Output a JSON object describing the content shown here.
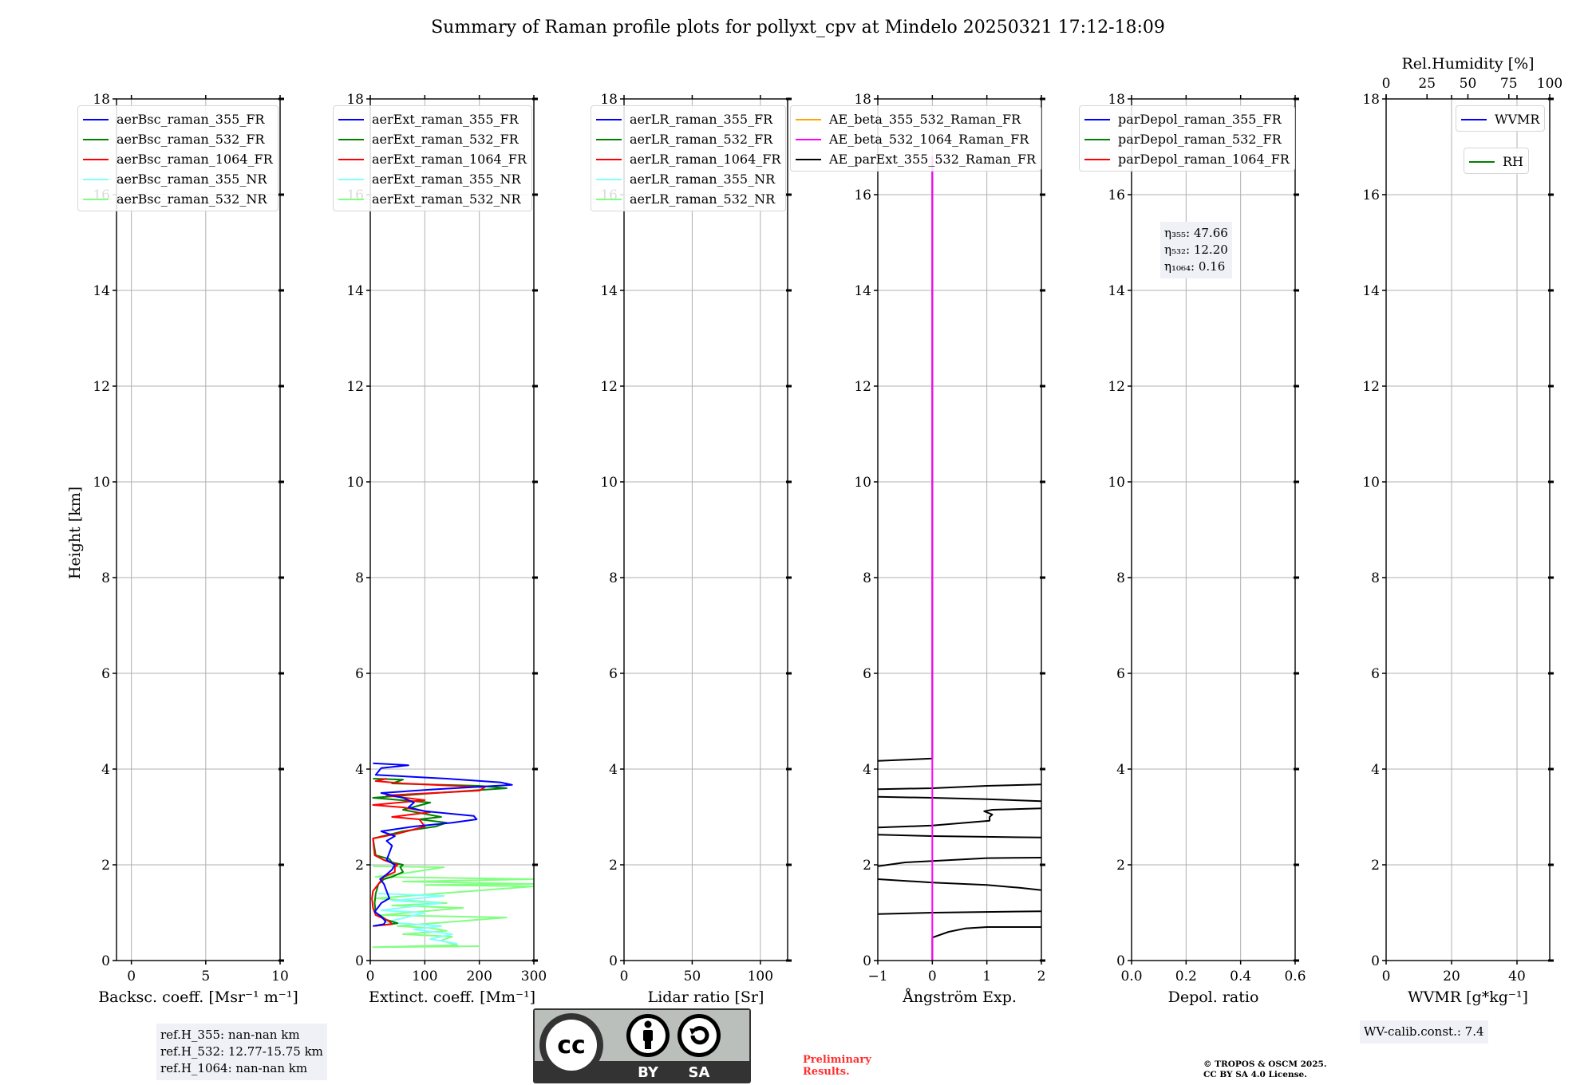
{
  "title": "Summary of Raman profile plots for pollyxt_cpv at Mindelo 20250321 17:12-18:09",
  "yaxis": {
    "label": "Height [km]",
    "ylim": [
      0,
      18
    ],
    "ticks": [
      0,
      2,
      4,
      6,
      8,
      10,
      12,
      14,
      16,
      18
    ],
    "ticklabels": [
      "0",
      "2",
      "4",
      "6",
      "8",
      "10",
      "12",
      "14",
      "16",
      "18"
    ]
  },
  "chart_data": [
    {
      "type": "line",
      "name": "backscatter",
      "xlabel": "Backsc. coeff. [Msr⁻¹ m⁻¹]",
      "xlim": [
        -1,
        10
      ],
      "xticks": [
        0,
        5,
        10
      ],
      "xticklabels": [
        "0",
        "5",
        "10"
      ],
      "legend": [
        {
          "label": "aerBsc_raman_355_FR",
          "color": "#0000ff"
        },
        {
          "label": "aerBsc_raman_532_FR",
          "color": "#008000"
        },
        {
          "label": "aerBsc_raman_1064_FR",
          "color": "#ff0000"
        },
        {
          "label": "aerBsc_raman_355_NR",
          "color": "#80ffff"
        },
        {
          "label": "aerBsc_raman_532_NR",
          "color": "#80ff80"
        }
      ],
      "series": []
    },
    {
      "type": "line",
      "name": "extinction",
      "xlabel": "Extinct. coeff. [Mm⁻¹]",
      "xlim": [
        0,
        300
      ],
      "xticks": [
        0,
        100,
        200,
        300
      ],
      "xticklabels": [
        "0",
        "100",
        "200",
        "300"
      ],
      "legend": [
        {
          "label": "aerExt_raman_355_FR",
          "color": "#0000ff"
        },
        {
          "label": "aerExt_raman_532_FR",
          "color": "#008000"
        },
        {
          "label": "aerExt_raman_1064_FR",
          "color": "#ff0000"
        },
        {
          "label": "aerExt_raman_355_NR",
          "color": "#80ffff"
        },
        {
          "label": "aerExt_raman_532_NR",
          "color": "#80ff80"
        }
      ],
      "series": [
        {
          "name": "aerExt_raman_532_NR",
          "color": "#80ff80",
          "points": [
            [
              200,
              0.3
            ],
            [
              5,
              0.28
            ],
            [
              160,
              0.32
            ],
            [
              130,
              0.42
            ],
            [
              150,
              0.5
            ],
            [
              60,
              0.55
            ],
            [
              140,
              0.62
            ],
            [
              110,
              0.68
            ],
            [
              50,
              0.72
            ],
            [
              250,
              0.9
            ],
            [
              20,
              0.95
            ],
            [
              170,
              1.1
            ],
            [
              40,
              1.15
            ],
            [
              140,
              1.2
            ],
            [
              10,
              1.3
            ],
            [
              300,
              1.55
            ],
            [
              100,
              1.58
            ],
            [
              300,
              1.6
            ],
            [
              60,
              1.65
            ],
            [
              300,
              1.7
            ],
            [
              10,
              1.75
            ],
            [
              50,
              1.8
            ],
            [
              135,
              1.95
            ],
            [
              5,
              1.97
            ]
          ]
        },
        {
          "name": "aerExt_raman_355_NR",
          "color": "#80ffff",
          "points": [
            [
              160,
              0.35
            ],
            [
              110,
              0.45
            ],
            [
              150,
              0.55
            ],
            [
              80,
              0.65
            ],
            [
              130,
              0.72
            ],
            [
              30,
              0.8
            ],
            [
              100,
              1.0
            ],
            [
              20,
              1.05
            ],
            [
              130,
              1.2
            ],
            [
              40,
              1.25
            ],
            [
              135,
              1.35
            ],
            [
              15,
              1.4
            ]
          ]
        },
        {
          "name": "aerExt_raman_532_FR",
          "color": "#008000",
          "points": [
            [
              5,
              0.72
            ],
            [
              30,
              0.75
            ],
            [
              50,
              0.78
            ],
            [
              30,
              0.85
            ],
            [
              10,
              1.0
            ],
            [
              8,
              1.2
            ],
            [
              10,
              1.4
            ],
            [
              15,
              1.6
            ],
            [
              25,
              1.7
            ],
            [
              40,
              1.75
            ],
            [
              60,
              1.85
            ],
            [
              55,
              1.95
            ],
            [
              60,
              2.0
            ],
            [
              40,
              2.05
            ],
            [
              35,
              2.12
            ],
            [
              10,
              2.2
            ],
            [
              5,
              2.55
            ],
            [
              60,
              2.7
            ],
            [
              120,
              2.8
            ],
            [
              140,
              2.88
            ],
            [
              90,
              2.95
            ],
            [
              130,
              3.0
            ],
            [
              60,
              3.15
            ],
            [
              110,
              3.3
            ],
            [
              5,
              3.4
            ],
            [
              120,
              3.5
            ],
            [
              250,
              3.6
            ],
            [
              200,
              3.65
            ],
            [
              40,
              3.7
            ],
            [
              60,
              3.78
            ],
            [
              5,
              3.8
            ]
          ]
        },
        {
          "name": "aerExt_raman_1064_FR",
          "color": "#ff0000",
          "points": [
            [
              5,
              0.72
            ],
            [
              40,
              0.76
            ],
            [
              35,
              0.82
            ],
            [
              10,
              0.95
            ],
            [
              5,
              1.1
            ],
            [
              3,
              1.3
            ],
            [
              5,
              1.45
            ],
            [
              15,
              1.6
            ],
            [
              25,
              1.75
            ],
            [
              45,
              1.85
            ],
            [
              45,
              1.95
            ],
            [
              50,
              2.0
            ],
            [
              25,
              2.1
            ],
            [
              8,
              2.2
            ],
            [
              5,
              2.55
            ],
            [
              50,
              2.65
            ],
            [
              100,
              2.8
            ],
            [
              90,
              2.95
            ],
            [
              40,
              3.0
            ],
            [
              110,
              3.1
            ],
            [
              60,
              3.2
            ],
            [
              5,
              3.25
            ],
            [
              100,
              3.35
            ],
            [
              30,
              3.45
            ],
            [
              200,
              3.55
            ],
            [
              210,
              3.62
            ],
            [
              60,
              3.7
            ],
            [
              10,
              3.75
            ],
            [
              30,
              3.8
            ]
          ]
        },
        {
          "name": "aerExt_raman_355_FR",
          "color": "#0000ff",
          "points": [
            [
              5,
              0.72
            ],
            [
              25,
              0.76
            ],
            [
              28,
              0.82
            ],
            [
              20,
              0.92
            ],
            [
              8,
              1.02
            ],
            [
              15,
              1.12
            ],
            [
              20,
              1.2
            ],
            [
              35,
              1.3
            ],
            [
              30,
              1.45
            ],
            [
              25,
              1.6
            ],
            [
              18,
              1.7
            ],
            [
              30,
              1.8
            ],
            [
              40,
              1.9
            ],
            [
              45,
              2.0
            ],
            [
              30,
              2.1
            ],
            [
              35,
              2.25
            ],
            [
              40,
              2.4
            ],
            [
              30,
              2.5
            ],
            [
              45,
              2.6
            ],
            [
              20,
              2.7
            ],
            [
              80,
              2.8
            ],
            [
              150,
              2.88
            ],
            [
              195,
              2.95
            ],
            [
              190,
              3.02
            ],
            [
              100,
              3.12
            ],
            [
              70,
              3.2
            ],
            [
              80,
              3.3
            ],
            [
              60,
              3.4
            ],
            [
              20,
              3.5
            ],
            [
              110,
              3.57
            ],
            [
              260,
              3.67
            ],
            [
              240,
              3.72
            ],
            [
              140,
              3.8
            ],
            [
              10,
              3.88
            ],
            [
              20,
              4.02
            ],
            [
              70,
              4.08
            ],
            [
              5,
              4.12
            ]
          ]
        }
      ]
    },
    {
      "type": "line",
      "name": "lidar-ratio",
      "xlabel": "Lidar ratio [Sr]",
      "xlim": [
        0,
        120
      ],
      "xticks": [
        0,
        50,
        100
      ],
      "xticklabels": [
        "0",
        "50",
        "100"
      ],
      "legend": [
        {
          "label": "aerLR_raman_355_FR",
          "color": "#0000ff"
        },
        {
          "label": "aerLR_raman_532_FR",
          "color": "#008000"
        },
        {
          "label": "aerLR_raman_1064_FR",
          "color": "#ff0000"
        },
        {
          "label": "aerLR_raman_355_NR",
          "color": "#80ffff"
        },
        {
          "label": "aerLR_raman_532_NR",
          "color": "#80ff80"
        }
      ],
      "series": []
    },
    {
      "type": "line",
      "name": "angstrom",
      "xlabel": "Ångström Exp.",
      "xlim": [
        -1,
        2
      ],
      "xticks": [
        -1,
        0,
        1,
        2
      ],
      "xticklabels": [
        "−1",
        "0",
        "1",
        "2"
      ],
      "legend": [
        {
          "label": "AE_beta_355_532_Raman_FR",
          "color": "#ffa500"
        },
        {
          "label": "AE_beta_532_1064_Raman_FR",
          "color": "#ff00ff"
        },
        {
          "label": "AE_parExt_355_532_Raman_FR",
          "color": "#000000"
        }
      ],
      "series": [
        {
          "name": "AE_parExt_355_532_Raman_FR",
          "color": "#000000",
          "points": [
            [
              -1,
              4.17
            ],
            [
              0,
              4.22
            ],
            [
              0,
              16.8
            ]
          ]
        },
        {
          "name": "AE_parExt_355_532_Raman_FR",
          "color": "#000000",
          "points": [
            [
              -1,
              3.58
            ],
            [
              0,
              3.6
            ],
            [
              1,
              3.65
            ],
            [
              2,
              3.68
            ]
          ]
        },
        {
          "name": "AE_parExt_355_532_Raman_FR",
          "color": "#000000",
          "points": [
            [
              -1,
              3.42
            ],
            [
              0,
              3.4
            ],
            [
              1,
              3.37
            ],
            [
              2,
              3.33
            ]
          ]
        },
        {
          "name": "AE_parExt_355_532_Raman_FR",
          "color": "#000000",
          "points": [
            [
              -1,
              2.78
            ],
            [
              0,
              2.82
            ],
            [
              1.05,
              2.92
            ],
            [
              1.05,
              3.0
            ],
            [
              1.1,
              3.05
            ],
            [
              0.95,
              3.12
            ],
            [
              1.1,
              3.15
            ],
            [
              2,
              3.18
            ]
          ]
        },
        {
          "name": "AE_parExt_355_532_Raman_FR",
          "color": "#000000",
          "points": [
            [
              -1,
              2.63
            ],
            [
              0,
              2.6
            ],
            [
              2,
              2.57
            ]
          ]
        },
        {
          "name": "AE_parExt_355_532_Raman_FR",
          "color": "#000000",
          "points": [
            [
              -1,
              1.97
            ],
            [
              -0.5,
              2.05
            ],
            [
              0,
              2.08
            ],
            [
              1,
              2.14
            ],
            [
              2,
              2.15
            ]
          ]
        },
        {
          "name": "AE_parExt_355_532_Raman_FR",
          "color": "#000000",
          "points": [
            [
              -1,
              1.7
            ],
            [
              0,
              1.63
            ],
            [
              1,
              1.58
            ],
            [
              1.6,
              1.52
            ],
            [
              2,
              1.47
            ]
          ]
        },
        {
          "name": "AE_parExt_355_532_Raman_FR",
          "color": "#000000",
          "points": [
            [
              -1,
              0.97
            ],
            [
              0,
              1.0
            ],
            [
              2,
              1.03
            ]
          ]
        },
        {
          "name": "AE_parExt_355_532_Raman_FR",
          "color": "#000000",
          "points": [
            [
              0,
              0
            ],
            [
              0,
              0.48
            ],
            [
              0.3,
              0.6
            ],
            [
              0.6,
              0.67
            ],
            [
              1,
              0.7
            ],
            [
              2,
              0.7
            ]
          ]
        },
        {
          "name": "AE_beta_532_1064_Raman_FR",
          "color": "#ff00ff",
          "points": [
            [
              0,
              0
            ],
            [
              0,
              16.8
            ]
          ]
        }
      ]
    },
    {
      "type": "line",
      "name": "depolarization",
      "xlabel": "Depol. ratio",
      "xlim": [
        0,
        0.6
      ],
      "xticks": [
        0,
        0.2,
        0.4,
        0.6
      ],
      "xticklabels": [
        "0.0",
        "0.2",
        "0.4",
        "0.6"
      ],
      "legend": [
        {
          "label": "parDepol_raman_355_FR",
          "color": "#0000ff"
        },
        {
          "label": "parDepol_raman_532_FR",
          "color": "#008000"
        },
        {
          "label": "parDepol_raman_1064_FR",
          "color": "#ff0000"
        }
      ],
      "series": [],
      "annotation": [
        "η₃₅₅: 47.66",
        "η₅₃₂: 12.20",
        "η₁₀₆₄: 0.16"
      ]
    },
    {
      "type": "line",
      "name": "wvmr",
      "xlabel": "WVMR [g*kg⁻¹]",
      "xlim": [
        0,
        50
      ],
      "xticks": [
        0,
        20,
        40
      ],
      "xticklabels": [
        "0",
        "20",
        "40"
      ],
      "top_axis": {
        "label": "Rel.Humidity [%]",
        "xlim": [
          0,
          100
        ],
        "ticks": [
          0,
          25,
          50,
          75,
          100
        ],
        "ticklabels": [
          "0",
          "25",
          "50",
          "75",
          "100"
        ]
      },
      "legend": [
        {
          "label": "WVMR",
          "color": "#0000ff"
        }
      ],
      "legend2": [
        {
          "label": "RH",
          "color": "#008000"
        }
      ],
      "series": []
    }
  ],
  "ref_heights": [
    "ref.H_355: nan-nan km",
    "ref.H_532: 12.77-15.75 km",
    "ref.H_1064: nan-nan km"
  ],
  "wv_calib": "WV-calib.const.: 7.4",
  "license_logo": {
    "by": "BY",
    "sa": "SA",
    "cc": "cc"
  },
  "preliminary": [
    "Preliminary",
    "Results."
  ],
  "copyright": [
    "© TROPOS & OSCM 2025.",
    "CC BY SA 4.0 License."
  ]
}
